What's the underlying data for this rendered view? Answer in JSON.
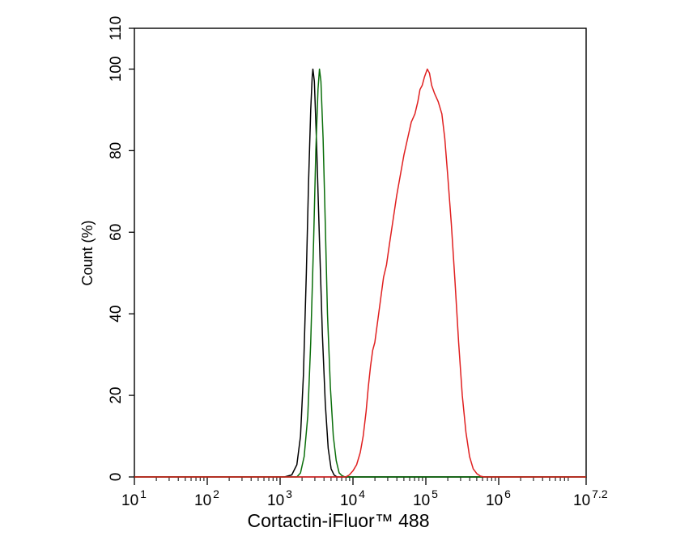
{
  "chart_data": {
    "type": "line",
    "title": "",
    "xlabel": "Cortactin-iFluor™ 488",
    "ylabel": "Count  (%)",
    "x_scale": "log10",
    "xlim": [
      10,
      15848931.92
    ],
    "ylim": [
      0,
      110
    ],
    "x_ticks": [
      {
        "base": "10",
        "exp": "1",
        "value": 10
      },
      {
        "base": "10",
        "exp": "2",
        "value": 100
      },
      {
        "base": "10",
        "exp": "3",
        "value": 1000
      },
      {
        "base": "10",
        "exp": "4",
        "value": 10000
      },
      {
        "base": "10",
        "exp": "5",
        "value": 100000
      },
      {
        "base": "10",
        "exp": "6",
        "value": 1000000
      },
      {
        "base": "10",
        "exp": "7.2",
        "value": 15848931.92
      }
    ],
    "y_ticks": [
      "0",
      "20",
      "40",
      "60",
      "80",
      "100",
      "110"
    ],
    "grid": false,
    "legend": "none",
    "series": [
      {
        "color": "#000000",
        "points": [
          [
            1148,
            0
          ],
          [
            1445,
            0.5
          ],
          [
            1698,
            3
          ],
          [
            1905,
            10
          ],
          [
            2089,
            25
          ],
          [
            2291,
            50
          ],
          [
            2455,
            72
          ],
          [
            2630,
            90
          ],
          [
            2754,
            98
          ],
          [
            2818,
            100
          ],
          [
            2951,
            97
          ],
          [
            3162,
            82
          ],
          [
            3467,
            58
          ],
          [
            3802,
            35
          ],
          [
            4169,
            18
          ],
          [
            4571,
            7
          ],
          [
            5012,
            2
          ],
          [
            5495,
            0.5
          ],
          [
            6026,
            0
          ]
        ]
      },
      {
        "color": "#0a6e0a",
        "points": [
          [
            1698,
            0
          ],
          [
            1905,
            1
          ],
          [
            2138,
            5
          ],
          [
            2399,
            15
          ],
          [
            2630,
            33
          ],
          [
            2884,
            58
          ],
          [
            3090,
            80
          ],
          [
            3311,
            95
          ],
          [
            3467,
            100
          ],
          [
            3631,
            97
          ],
          [
            3890,
            83
          ],
          [
            4169,
            62
          ],
          [
            4467,
            40
          ],
          [
            4898,
            22
          ],
          [
            5370,
            10
          ],
          [
            5888,
            4
          ],
          [
            6457,
            1
          ],
          [
            7079,
            0.3
          ],
          [
            7762,
            0
          ]
        ]
      },
      {
        "color": "#e02020",
        "points": [
          [
            7943,
            0
          ],
          [
            8913,
            0.5
          ],
          [
            10000,
            1.5
          ],
          [
            11220,
            3
          ],
          [
            12589,
            6
          ],
          [
            13804,
            10
          ],
          [
            15136,
            16
          ],
          [
            16218,
            22
          ],
          [
            17378,
            27
          ],
          [
            18621,
            31
          ],
          [
            19953,
            33
          ],
          [
            21380,
            37
          ],
          [
            22909,
            41
          ],
          [
            24547,
            45
          ],
          [
            26303,
            49
          ],
          [
            28840,
            52
          ],
          [
            31623,
            57
          ],
          [
            35481,
            63
          ],
          [
            39811,
            69
          ],
          [
            44668,
            74
          ],
          [
            50119,
            79
          ],
          [
            56234,
            83
          ],
          [
            63096,
            87
          ],
          [
            70795,
            89
          ],
          [
            77625,
            92
          ],
          [
            83176,
            95
          ],
          [
            89125,
            96
          ],
          [
            95499,
            98
          ],
          [
            100000,
            99
          ],
          [
            104713,
            100
          ],
          [
            112202,
            99
          ],
          [
            120226,
            96
          ],
          [
            131826,
            94
          ],
          [
            147911,
            92
          ],
          [
            165959,
            89
          ],
          [
            181970,
            83
          ],
          [
            199526,
            74
          ],
          [
            223872,
            62
          ],
          [
            251189,
            48
          ],
          [
            281838,
            33
          ],
          [
            316228,
            20
          ],
          [
            354813,
            11
          ],
          [
            398107,
            5
          ],
          [
            446684,
            2
          ],
          [
            501187,
            0.8
          ],
          [
            562341,
            0.2
          ],
          [
            630957,
            0
          ]
        ]
      }
    ]
  }
}
